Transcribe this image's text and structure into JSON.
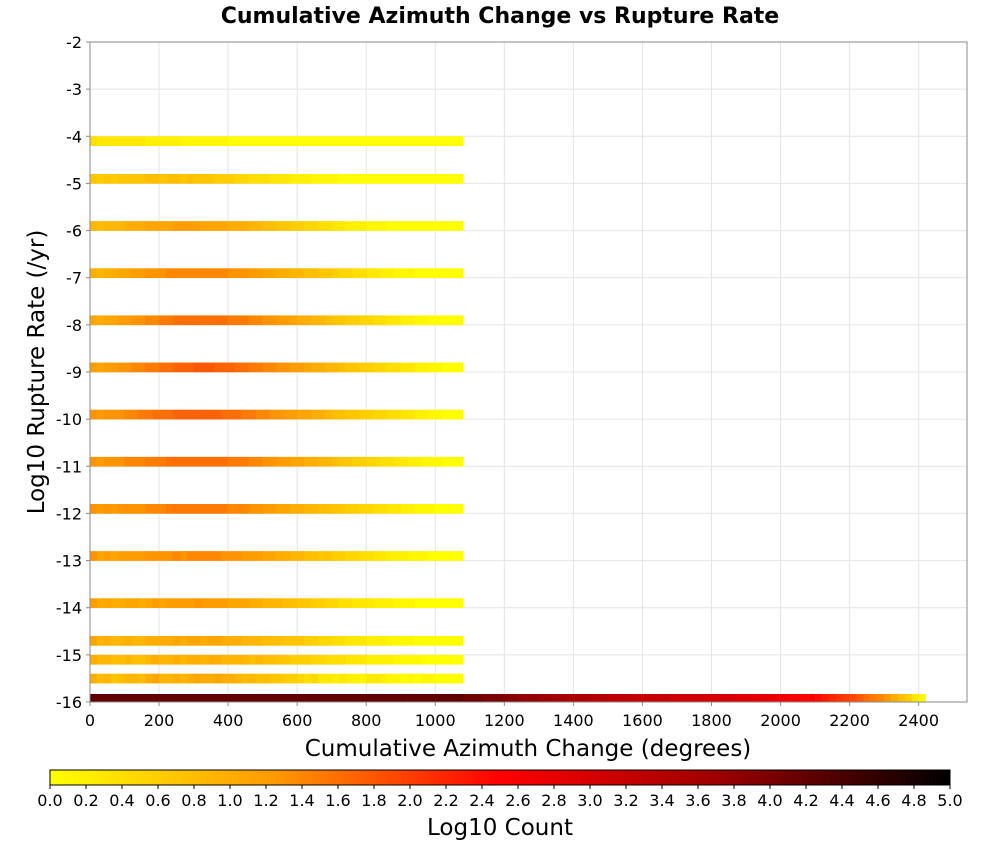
{
  "chart_data": {
    "type": "heatmap",
    "title": "Cumulative Azimuth Change vs Rupture Rate",
    "xlabel": "Cumulative Azimuth Change (degrees)",
    "ylabel": "Log10 Rupture Rate (/yr)",
    "xlim": [
      0,
      2540
    ],
    "ylim": [
      -16,
      -2
    ],
    "x_ticks": [
      "0",
      "200",
      "400",
      "600",
      "800",
      "1000",
      "1200",
      "1400",
      "1600",
      "1800",
      "2000",
      "2200",
      "2400"
    ],
    "y_ticks": [
      "-2",
      "-3",
      "-4",
      "-5",
      "-6",
      "-7",
      "-8",
      "-9",
      "-10",
      "-11",
      "-12",
      "-13",
      "-14",
      "-15",
      "-16"
    ],
    "grid": true,
    "colorbar": {
      "label": "Log10 Count",
      "range": [
        0,
        5
      ],
      "ticks": [
        "0.0",
        "0.2",
        "0.4",
        "0.6",
        "0.8",
        "1.0",
        "1.2",
        "1.4",
        "1.6",
        "1.8",
        "2.0",
        "2.2",
        "2.4",
        "2.6",
        "2.8",
        "3.0",
        "3.2",
        "3.4",
        "3.6",
        "3.8",
        "4.0",
        "4.2",
        "4.4",
        "4.6",
        "4.8",
        "5.0"
      ],
      "colormap": [
        "#ffff00",
        "#ff9900",
        "#ff0000",
        "#990000",
        "#000000"
      ]
    },
    "bin_width_x": 20,
    "bin_height_y": 0.2,
    "rows": [
      {
        "y": -16.0,
        "x_start": 0,
        "values": [
          4.2,
          4.2,
          4.2,
          4.2,
          4.2,
          4.2,
          4.2,
          4.2,
          4.2,
          4.2,
          4.2,
          4.2,
          4.2,
          4.2,
          4.2,
          4.2,
          4.2,
          4.2,
          4.2,
          4.2,
          4.2,
          4.2,
          4.2,
          4.2,
          4.2,
          4.2,
          4.2,
          4.2,
          4.2,
          4.2,
          4.2,
          4.2,
          4.2,
          4.2,
          4.2,
          4.2,
          4.2,
          4.2,
          4.2,
          4.2,
          4.2,
          4.2,
          4.2,
          4.2,
          4.2,
          4.2,
          4.2,
          4.2,
          4.2,
          4.2,
          4.2,
          4.2,
          4.2,
          4.2,
          4.1,
          4.1,
          4.1,
          4.0,
          4.0,
          4.0,
          3.9,
          3.9,
          3.8,
          3.8,
          3.8,
          3.7,
          3.7,
          3.6,
          3.6,
          3.5,
          3.5,
          3.5,
          3.4,
          3.4,
          3.4,
          3.3,
          3.3,
          3.3,
          3.3,
          3.2,
          3.2,
          3.2,
          3.2,
          3.2,
          3.1,
          3.1,
          3.1,
          3.1,
          3.1,
          3.0,
          3.0,
          3.0,
          3.0,
          2.9,
          2.9,
          2.9,
          2.8,
          2.8,
          2.8,
          2.7,
          2.7,
          2.6,
          2.6,
          2.5,
          2.5,
          2.4,
          2.3,
          2.2,
          2.1,
          2.0,
          1.9,
          1.8,
          1.6,
          1.5,
          1.4,
          1.2,
          1.0,
          0.8,
          0.6,
          0.3,
          0.1
        ]
      },
      {
        "y": -15.6,
        "x_start": 0,
        "values": [
          1.0,
          0.8,
          0.9,
          0.7,
          0.8,
          0.9,
          0.9,
          0.8,
          1.0,
          1.1,
          0.9,
          0.9,
          1.0,
          0.9,
          1.0,
          1.1,
          1.0,
          1.0,
          1.1,
          1.0,
          1.0,
          0.9,
          0.8,
          0.9,
          0.8,
          0.8,
          0.7,
          0.7,
          0.6,
          0.6,
          0.5,
          0.4,
          0.5,
          0.3,
          0.3,
          0.2,
          0.3,
          0.2,
          0.2,
          0.1,
          0.3,
          0.3,
          0.2,
          0.1,
          0.1,
          0.0,
          0.1,
          0.0,
          0.1,
          0.1,
          0.0,
          0.0,
          0.0,
          0.0
        ]
      },
      {
        "y": -15.2,
        "x_start": 0,
        "values": [
          1.0,
          0.9,
          0.9,
          0.8,
          0.8,
          0.9,
          0.8,
          0.8,
          0.9,
          1.0,
          0.9,
          0.9,
          1.0,
          0.9,
          1.0,
          1.0,
          0.9,
          1.0,
          1.0,
          0.9,
          0.9,
          0.9,
          0.9,
          0.8,
          0.9,
          0.8,
          0.8,
          0.7,
          0.7,
          0.6,
          0.6,
          0.6,
          0.5,
          0.5,
          0.4,
          0.4,
          0.4,
          0.3,
          0.3,
          0.3,
          0.2,
          0.2,
          0.2,
          0.2,
          0.1,
          0.1,
          0.1,
          0.1,
          0.0,
          0.0,
          0.0,
          0.0,
          0.0,
          0.0
        ]
      },
      {
        "y": -14.8,
        "x_start": 0,
        "values": [
          1.1,
          0.9,
          1.0,
          0.9,
          0.9,
          1.0,
          0.9,
          0.9,
          1.0,
          1.0,
          1.0,
          1.0,
          1.1,
          1.0,
          1.1,
          1.1,
          1.0,
          1.1,
          1.1,
          1.0,
          1.0,
          1.0,
          0.9,
          0.9,
          0.9,
          0.8,
          0.8,
          0.8,
          0.7,
          0.7,
          0.7,
          0.6,
          0.6,
          0.5,
          0.5,
          0.4,
          0.4,
          0.3,
          0.3,
          0.3,
          0.2,
          0.2,
          0.2,
          0.1,
          0.1,
          0.1,
          0.1,
          0.0,
          0.0,
          0.0,
          0.0,
          0.0,
          0.0,
          0.0
        ]
      },
      {
        "y": -14.0,
        "x_start": 0,
        "values": [
          1.2,
          1.0,
          1.1,
          1.0,
          1.0,
          1.1,
          1.1,
          1.0,
          1.1,
          1.2,
          1.1,
          1.2,
          1.2,
          1.2,
          1.2,
          1.3,
          1.2,
          1.2,
          1.2,
          1.2,
          1.1,
          1.1,
          1.1,
          1.0,
          1.0,
          0.9,
          0.9,
          0.9,
          0.8,
          0.8,
          0.7,
          0.7,
          0.6,
          0.6,
          0.5,
          0.5,
          0.4,
          0.4,
          0.3,
          0.3,
          0.3,
          0.2,
          0.2,
          0.2,
          0.1,
          0.1,
          0.1,
          0.0,
          0.0,
          0.0,
          0.0,
          0.0,
          0.0,
          0.0
        ]
      },
      {
        "y": -13.0,
        "x_start": 0,
        "values": [
          1.3,
          1.1,
          1.2,
          1.1,
          1.2,
          1.2,
          1.2,
          1.2,
          1.3,
          1.3,
          1.3,
          1.3,
          1.4,
          1.3,
          1.4,
          1.4,
          1.4,
          1.4,
          1.4,
          1.3,
          1.3,
          1.3,
          1.2,
          1.2,
          1.2,
          1.1,
          1.1,
          1.0,
          1.0,
          0.9,
          0.9,
          0.8,
          0.8,
          0.7,
          0.7,
          0.6,
          0.6,
          0.5,
          0.5,
          0.4,
          0.4,
          0.3,
          0.3,
          0.2,
          0.2,
          0.2,
          0.1,
          0.1,
          0.1,
          0.0,
          0.0,
          0.0,
          0.0,
          0.0
        ]
      },
      {
        "y": -12.0,
        "x_start": 0,
        "values": [
          1.3,
          1.2,
          1.3,
          1.2,
          1.3,
          1.3,
          1.3,
          1.3,
          1.4,
          1.4,
          1.4,
          1.5,
          1.5,
          1.5,
          1.5,
          1.5,
          1.5,
          1.5,
          1.5,
          1.5,
          1.4,
          1.4,
          1.4,
          1.3,
          1.3,
          1.2,
          1.2,
          1.1,
          1.1,
          1.0,
          1.0,
          0.9,
          0.9,
          0.8,
          0.8,
          0.7,
          0.7,
          0.6,
          0.6,
          0.5,
          0.5,
          0.4,
          0.4,
          0.3,
          0.3,
          0.2,
          0.2,
          0.1,
          0.1,
          0.1,
          0.0,
          0.0,
          0.0,
          0.0
        ]
      },
      {
        "y": -11.0,
        "x_start": 0,
        "values": [
          1.3,
          1.2,
          1.3,
          1.3,
          1.3,
          1.4,
          1.4,
          1.4,
          1.5,
          1.5,
          1.5,
          1.6,
          1.6,
          1.6,
          1.6,
          1.6,
          1.6,
          1.6,
          1.6,
          1.6,
          1.5,
          1.5,
          1.5,
          1.4,
          1.4,
          1.3,
          1.3,
          1.2,
          1.2,
          1.1,
          1.1,
          1.0,
          1.0,
          0.9,
          0.9,
          0.8,
          0.7,
          0.7,
          0.6,
          0.6,
          0.5,
          0.5,
          0.4,
          0.4,
          0.3,
          0.3,
          0.2,
          0.2,
          0.1,
          0.1,
          0.1,
          0.0,
          0.0,
          0.0
        ]
      },
      {
        "y": -10.0,
        "x_start": 0,
        "values": [
          1.3,
          1.2,
          1.3,
          1.3,
          1.3,
          1.4,
          1.4,
          1.5,
          1.5,
          1.6,
          1.6,
          1.6,
          1.7,
          1.7,
          1.7,
          1.7,
          1.7,
          1.7,
          1.7,
          1.6,
          1.6,
          1.6,
          1.5,
          1.5,
          1.4,
          1.4,
          1.3,
          1.3,
          1.2,
          1.2,
          1.1,
          1.1,
          1.0,
          1.0,
          0.9,
          0.8,
          0.8,
          0.7,
          0.7,
          0.6,
          0.6,
          0.5,
          0.5,
          0.4,
          0.4,
          0.3,
          0.3,
          0.2,
          0.2,
          0.1,
          0.1,
          0.0,
          0.0,
          0.0
        ]
      },
      {
        "y": -9.0,
        "x_start": 0,
        "values": [
          1.2,
          1.1,
          1.2,
          1.2,
          1.3,
          1.3,
          1.4,
          1.4,
          1.5,
          1.5,
          1.6,
          1.6,
          1.7,
          1.7,
          1.7,
          1.8,
          1.8,
          1.8,
          1.7,
          1.7,
          1.7,
          1.6,
          1.6,
          1.5,
          1.5,
          1.4,
          1.4,
          1.3,
          1.3,
          1.2,
          1.2,
          1.1,
          1.0,
          1.0,
          0.9,
          0.9,
          0.8,
          0.7,
          0.7,
          0.6,
          0.6,
          0.5,
          0.5,
          0.4,
          0.4,
          0.3,
          0.3,
          0.2,
          0.2,
          0.1,
          0.1,
          0.0,
          0.0,
          0.0
        ]
      },
      {
        "y": -8.0,
        "x_start": 0,
        "values": [
          1.1,
          1.0,
          1.1,
          1.1,
          1.2,
          1.2,
          1.3,
          1.3,
          1.4,
          1.4,
          1.5,
          1.5,
          1.6,
          1.6,
          1.6,
          1.6,
          1.6,
          1.6,
          1.6,
          1.6,
          1.5,
          1.5,
          1.5,
          1.4,
          1.4,
          1.3,
          1.3,
          1.2,
          1.2,
          1.1,
          1.0,
          1.0,
          0.9,
          0.9,
          0.8,
          0.7,
          0.7,
          0.6,
          0.6,
          0.5,
          0.5,
          0.4,
          0.4,
          0.3,
          0.3,
          0.2,
          0.2,
          0.1,
          0.1,
          0.0,
          0.0,
          0.0,
          0.0,
          0.0
        ]
      },
      {
        "y": -7.0,
        "x_start": 0,
        "values": [
          1.0,
          0.9,
          1.0,
          1.0,
          1.1,
          1.1,
          1.2,
          1.2,
          1.3,
          1.3,
          1.3,
          1.4,
          1.4,
          1.4,
          1.4,
          1.4,
          1.4,
          1.4,
          1.4,
          1.4,
          1.3,
          1.3,
          1.3,
          1.2,
          1.2,
          1.1,
          1.1,
          1.0,
          1.0,
          0.9,
          0.9,
          0.8,
          0.8,
          0.7,
          0.7,
          0.6,
          0.5,
          0.5,
          0.4,
          0.4,
          0.3,
          0.3,
          0.2,
          0.2,
          0.1,
          0.1,
          0.1,
          0.0,
          0.0,
          0.0,
          0.0,
          0.0,
          0.0,
          0.0
        ]
      },
      {
        "y": -6.0,
        "x_start": 0,
        "values": [
          0.9,
          0.8,
          0.9,
          0.9,
          0.9,
          1.0,
          1.0,
          1.0,
          1.1,
          1.1,
          1.1,
          1.1,
          1.2,
          1.2,
          1.2,
          1.2,
          1.1,
          1.1,
          1.1,
          1.1,
          1.0,
          1.0,
          1.0,
          0.9,
          0.9,
          0.8,
          0.8,
          0.7,
          0.7,
          0.6,
          0.6,
          0.5,
          0.5,
          0.4,
          0.4,
          0.3,
          0.3,
          0.2,
          0.2,
          0.2,
          0.1,
          0.1,
          0.1,
          0.0,
          0.0,
          0.0,
          0.0,
          0.0,
          0.0,
          0.0,
          0.0,
          0.0,
          0.0,
          0.0
        ]
      },
      {
        "y": -5.0,
        "x_start": 0,
        "values": [
          0.7,
          0.6,
          0.7,
          0.6,
          0.7,
          0.7,
          0.7,
          0.7,
          0.8,
          0.8,
          0.7,
          0.8,
          0.8,
          0.7,
          0.8,
          0.7,
          0.7,
          0.7,
          0.6,
          0.6,
          0.6,
          0.5,
          0.5,
          0.4,
          0.4,
          0.4,
          0.3,
          0.3,
          0.3,
          0.2,
          0.2,
          0.2,
          0.1,
          0.1,
          0.1,
          0.1,
          0.0,
          0.0,
          0.0,
          0.0,
          0.0,
          0.0,
          0.0,
          0.0,
          0.0,
          0.0,
          0.0,
          0.0,
          0.0,
          0.0,
          0.0,
          0.0,
          0.0,
          0.0
        ]
      },
      {
        "y": -4.2,
        "x_start": 0,
        "values": [
          0.4,
          0.3,
          0.3,
          0.3,
          0.3,
          0.3,
          0.3,
          0.3,
          0.2,
          0.2,
          0.2,
          0.2,
          0.2,
          0.1,
          0.1,
          0.1,
          0.1,
          0.1,
          0.1,
          0.1,
          0.0,
          0.0,
          0.0,
          0.0,
          0.0,
          0.0,
          0.0,
          0.0,
          0.0,
          0.0,
          0.0,
          0.0,
          0.0,
          0.0,
          0.0,
          0.0,
          0.0,
          0.0,
          0.0,
          0.0,
          0.0,
          0.0,
          0.0,
          0.0,
          0.0,
          0.0,
          0.0,
          0.0,
          0.0,
          0.0,
          0.0,
          0.0,
          0.0,
          0.0
        ]
      }
    ]
  }
}
